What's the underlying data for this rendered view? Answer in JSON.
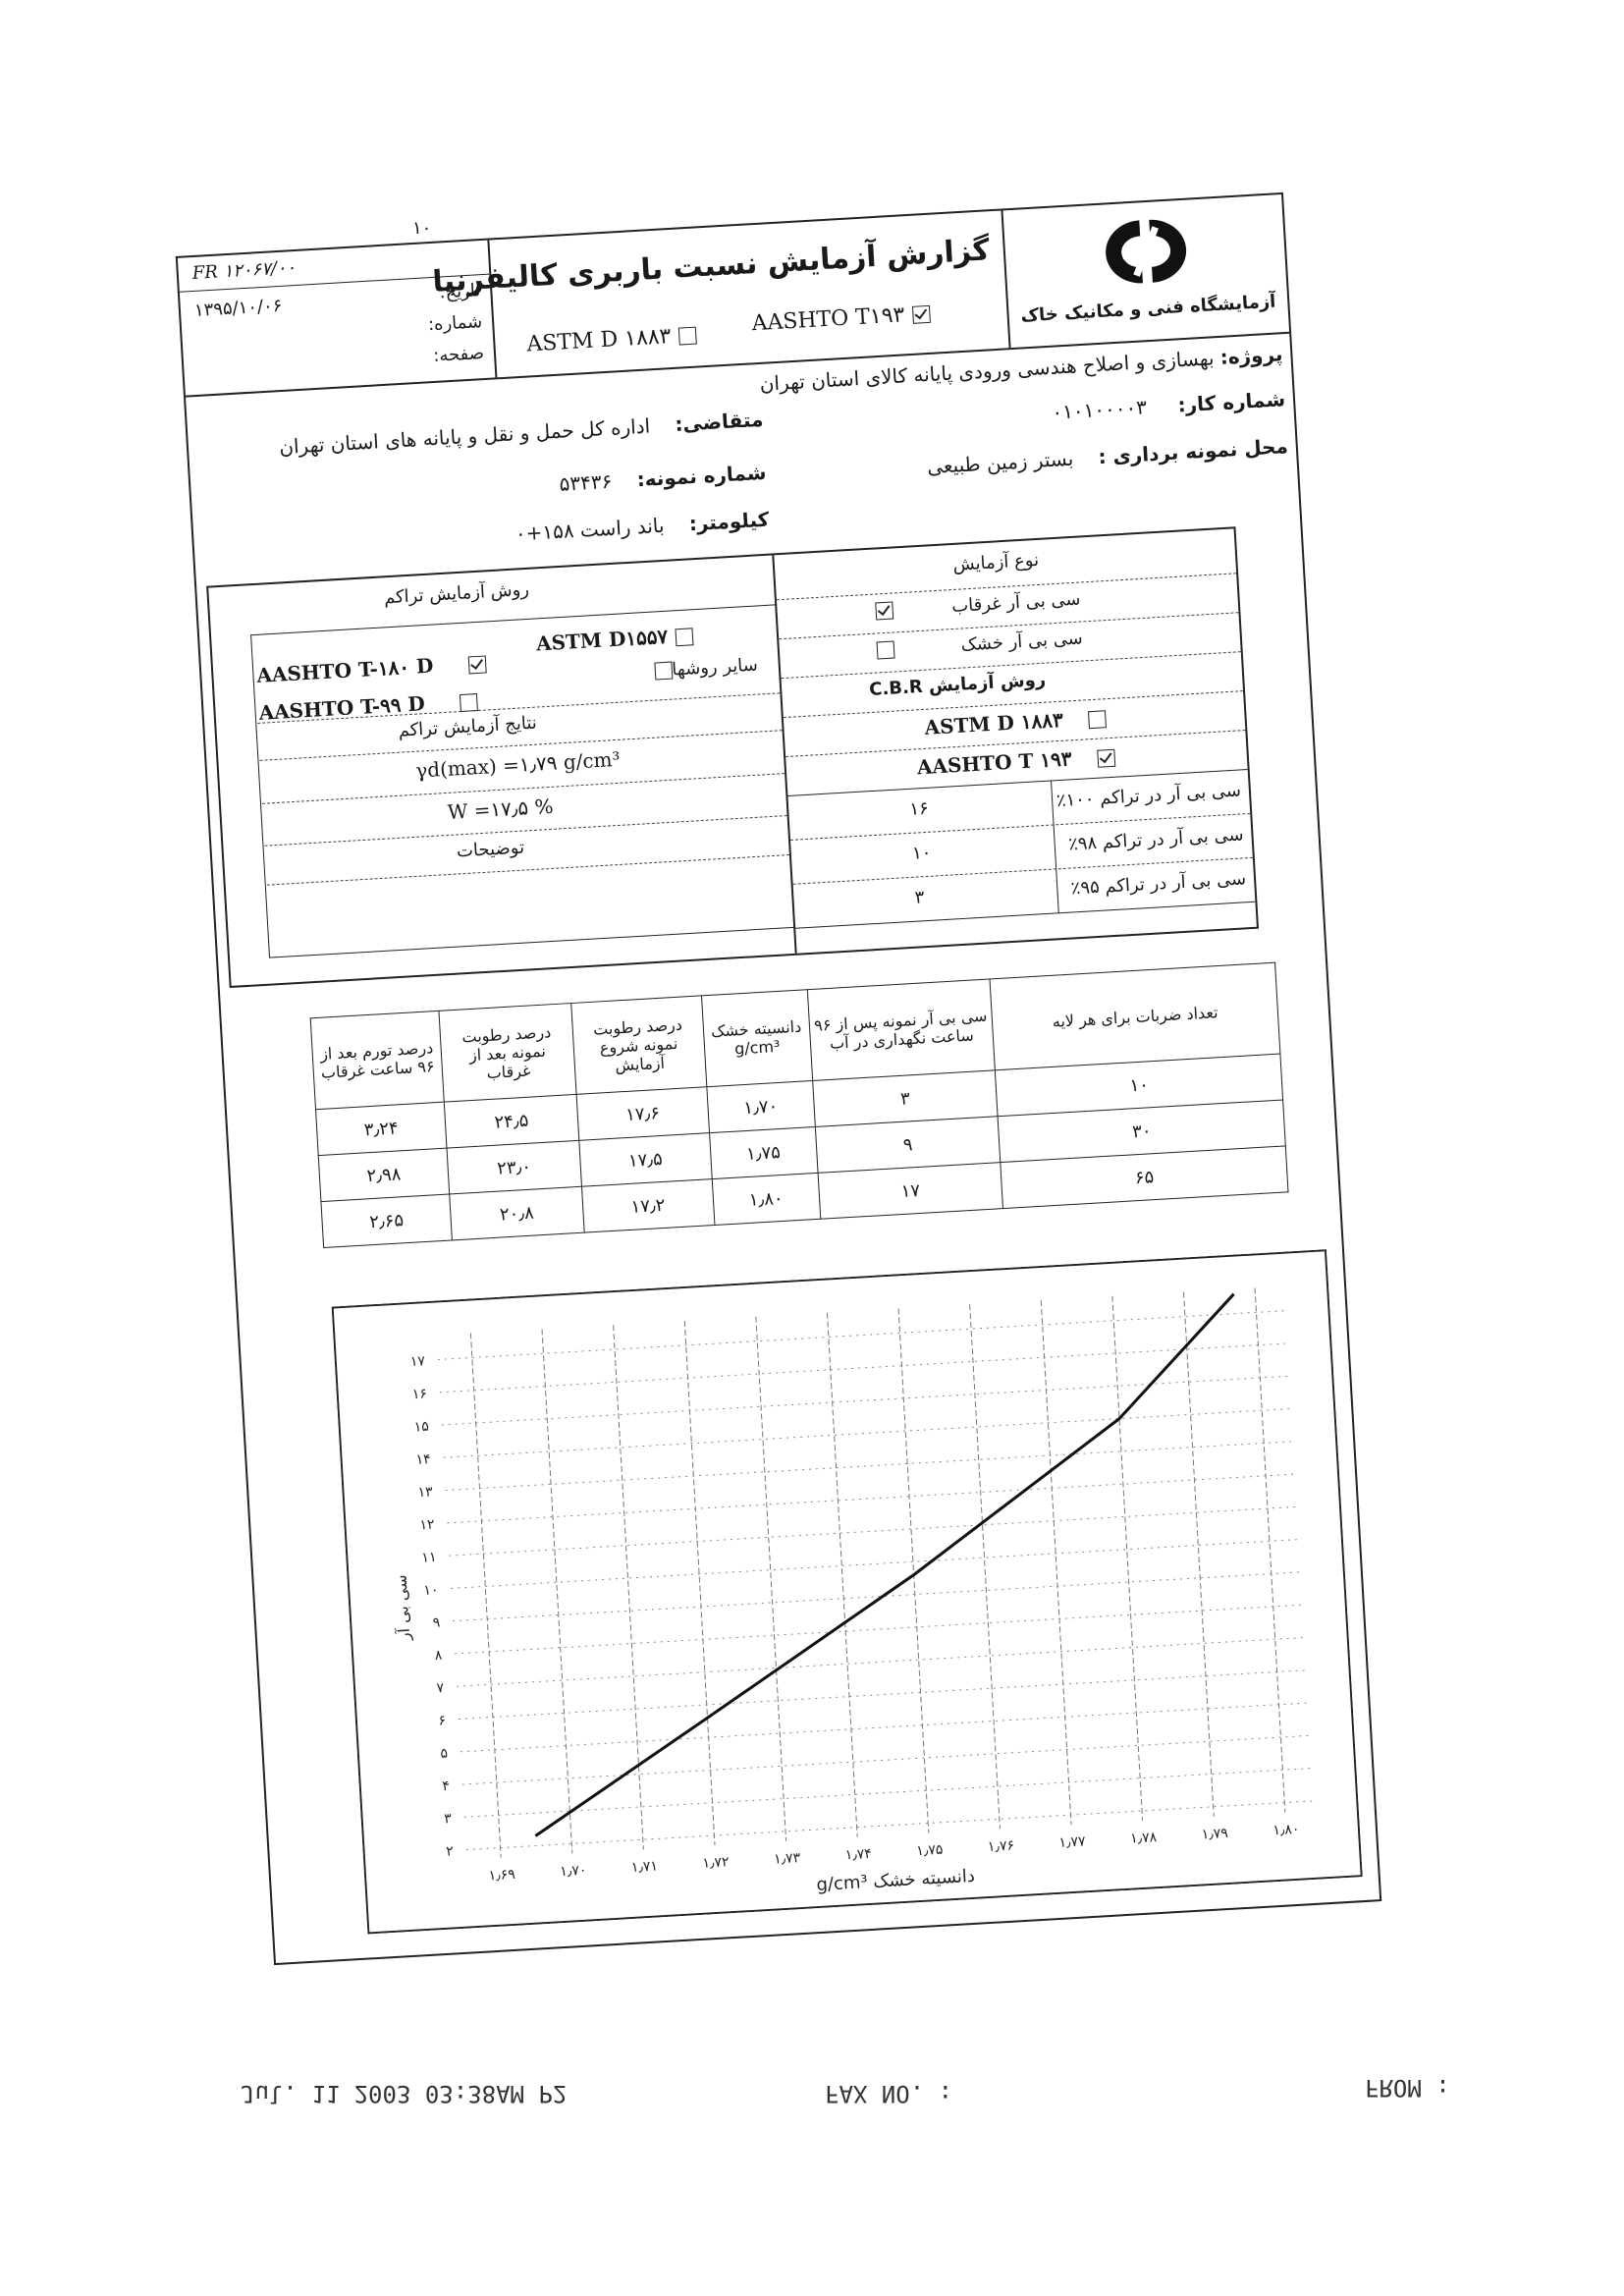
{
  "page_mark": "۱۰",
  "header": {
    "form_code": "FR ۱۲۰۶۷/۰۰",
    "date_label": "تاریخ:",
    "date": "۱۳۹۵/۱۰/۰۶",
    "number_label": "شماره:",
    "page_label": "صفحه:",
    "title": "گزارش آزمایش نسبت باربری کالیفرنیا",
    "standards": [
      {
        "label": "AASHTO T۱۹۳",
        "checked": true
      },
      {
        "label": "ASTM D ۱۸۸۳",
        "checked": false
      }
    ],
    "lab_name": "آزمایشگاه فنی و مکانیک خاک"
  },
  "info": {
    "project_label": "پروژه:",
    "project": "بهسازی و اصلاح هندسی ورودی پایانه کالای استان تهران",
    "job_label": "شماره کار:",
    "job": "۰۱۰۱۰۰۰۰۳",
    "applicant_label": "متقاضی:",
    "applicant": "اداره کل حمل و نقل و پایانه های استان تهران",
    "location_label": "محل نمونه برداری :",
    "location": "بستر زمین طبیعی",
    "sample_label": "شماره نمونه:",
    "sample": "۵۳۴۳۶",
    "km_label": "کیلومتر:",
    "km": "باند راست ۱۵۸+۰"
  },
  "test_type": {
    "title": "نوع آزمایش",
    "options": [
      {
        "label": "سی بی آر غرقاب",
        "checked": true
      },
      {
        "label": "سی بی آر خشک",
        "checked": false
      }
    ],
    "method_title": "روش آزمایش C.B.R",
    "methods": [
      {
        "label": "ASTM D ۱۸۸۳",
        "checked": false
      },
      {
        "label": "AASHTO T ۱۹۳",
        "checked": true
      }
    ],
    "cbr_rows": [
      [
        "سی بی آر در تراکم ۱۰۰٪",
        "۱۶"
      ],
      [
        "سی بی آر در تراکم ۹۸٪",
        "۱۰"
      ],
      [
        "سی بی آر در تراکم ۹۵٪",
        "۳"
      ]
    ]
  },
  "compaction": {
    "title": "روش آزمایش تراکم",
    "methods": [
      {
        "label": "ASTM D۱۵۵۷",
        "checked": false
      },
      {
        "label": "AASHTO T-۱۸۰ D",
        "checked": true
      },
      {
        "label": "سایر روشها",
        "checked": false
      },
      {
        "label": "AASHTO T-۹۹ D",
        "checked": false
      }
    ],
    "results_title": "نتایج آزمایش تراکم",
    "gamma": "γd(max) =۱٫۷۹ g/cm³",
    "moisture": "W =۱۷٫۵ %",
    "remarks_label": "توضیحات"
  },
  "table": {
    "headers": [
      "تعداد ضربات برای هر لایه",
      "سی بی آر نمونه پس از ۹۶ ساعت نگهداری در آب",
      "دانسیته خشک g/cm³",
      "درصد رطوبت نمونه شروع آزمایش",
      "درصد رطوبت نمونه بعد از غرقاب",
      "درصد تورم بعد از ۹۶ ساعت غرقاب"
    ],
    "rows": [
      [
        "۱۰",
        "۳",
        "۱٫۷۰",
        "۱۷٫۶",
        "۲۴٫۵",
        "۳٫۲۴"
      ],
      [
        "۳۰",
        "۹",
        "۱٫۷۵",
        "۱۷٫۵",
        "۲۳٫۰",
        "۲٫۹۸"
      ],
      [
        "۶۵",
        "۱۷",
        "۱٫۸۰",
        "۱۷٫۲",
        "۲۰٫۸",
        "۲٫۶۵"
      ]
    ]
  },
  "chart_data": {
    "type": "line",
    "x_label": "دانسیته خشک g/cm³",
    "y_label": "سی بی آر",
    "x": [
      1.695,
      1.72,
      1.75,
      1.78,
      1.797
    ],
    "values": [
      2.3,
      5.6,
      9.6,
      14.0,
      17.6
    ],
    "color": "#111111",
    "xlim": [
      1.69,
      1.8
    ],
    "ylim": [
      2,
      17
    ],
    "grid": true,
    "xticks": [
      {
        "value": 1.69,
        "label": "۱٫۶۹"
      },
      {
        "value": 1.7,
        "label": "۱٫۷۰"
      },
      {
        "value": 1.71,
        "label": "۱٫۷۱"
      },
      {
        "value": 1.72,
        "label": "۱٫۷۲"
      },
      {
        "value": 1.73,
        "label": "۱٫۷۳"
      },
      {
        "value": 1.74,
        "label": "۱٫۷۴"
      },
      {
        "value": 1.75,
        "label": "۱٫۷۵"
      },
      {
        "value": 1.76,
        "label": "۱٫۷۶"
      },
      {
        "value": 1.77,
        "label": "۱٫۷۷"
      },
      {
        "value": 1.78,
        "label": "۱٫۷۸"
      },
      {
        "value": 1.79,
        "label": "۱٫۷۹"
      },
      {
        "value": 1.8,
        "label": "۱٫۸۰"
      }
    ],
    "yticks": [
      {
        "value": 2,
        "label": "۲"
      },
      {
        "value": 3,
        "label": "۳"
      },
      {
        "value": 4,
        "label": "۴"
      },
      {
        "value": 5,
        "label": "۵"
      },
      {
        "value": 6,
        "label": "۶"
      },
      {
        "value": 7,
        "label": "۷"
      },
      {
        "value": 8,
        "label": "۸"
      },
      {
        "value": 9,
        "label": "۹"
      },
      {
        "value": 10,
        "label": "۱۰"
      },
      {
        "value": 11,
        "label": "۱۱"
      },
      {
        "value": 12,
        "label": "۱۲"
      },
      {
        "value": 13,
        "label": "۱۳"
      },
      {
        "value": 14,
        "label": "۱۴"
      },
      {
        "value": 15,
        "label": "۱۵"
      },
      {
        "value": 16,
        "label": "۱۶"
      },
      {
        "value": 17,
        "label": "۱۷"
      }
    ]
  },
  "fax": {
    "from": "FROM :",
    "fax_no": "FAX NO. :",
    "stamp": "Jul. 11 2003 03:38AM P2"
  }
}
